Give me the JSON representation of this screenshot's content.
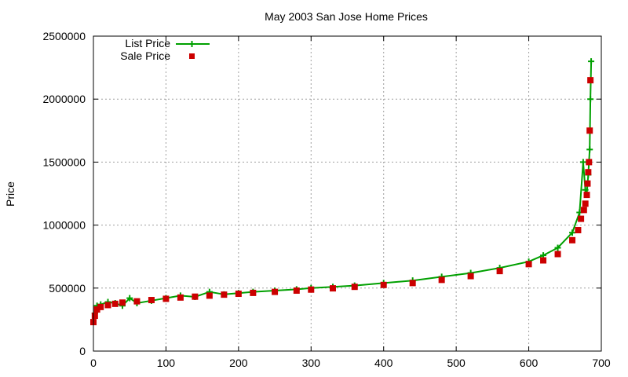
{
  "chart_data": {
    "type": "line",
    "title": "May 2003 San Jose Home Prices",
    "xlabel": "",
    "ylabel": "Price",
    "xlim": [
      0,
      700
    ],
    "ylim": [
      0,
      2500000
    ],
    "x_ticks": [
      0,
      100,
      200,
      300,
      400,
      500,
      600,
      700
    ],
    "y_ticks": [
      0,
      500000,
      1000000,
      1500000,
      2000000,
      2500000
    ],
    "x_tick_labels": [
      "0",
      "100",
      "200",
      "300",
      "400",
      "500",
      "600",
      "700"
    ],
    "y_tick_labels": [
      "0",
      "500000",
      "1000000",
      "1500000",
      "2000000",
      "2500000"
    ],
    "grid": true,
    "legend_position": "top-left",
    "series": [
      {
        "name": "List Price",
        "style": "line+plus-marker",
        "color": "#00a000",
        "x": [
          0,
          2,
          5,
          10,
          20,
          30,
          40,
          50,
          60,
          80,
          100,
          120,
          140,
          160,
          180,
          200,
          220,
          250,
          280,
          300,
          330,
          360,
          400,
          440,
          480,
          520,
          560,
          600,
          620,
          640,
          660,
          670,
          675,
          678,
          680,
          682,
          684,
          685,
          686
        ],
        "values": [
          240000,
          300000,
          360000,
          370000,
          390000,
          380000,
          360000,
          420000,
          380000,
          400000,
          420000,
          440000,
          430000,
          470000,
          450000,
          460000,
          470000,
          480000,
          490000,
          500000,
          510000,
          520000,
          540000,
          560000,
          590000,
          620000,
          660000,
          710000,
          760000,
          820000,
          940000,
          1100000,
          1500000,
          1280000,
          1250000,
          1400000,
          1600000,
          2000000,
          2300000
        ]
      },
      {
        "name": "Sale Price",
        "style": "square-marker",
        "color": "#cc0000",
        "x": [
          0,
          2,
          5,
          10,
          20,
          30,
          40,
          60,
          80,
          100,
          120,
          140,
          160,
          180,
          200,
          220,
          250,
          280,
          300,
          330,
          360,
          400,
          440,
          480,
          520,
          560,
          600,
          620,
          640,
          660,
          668,
          672,
          676,
          678,
          680,
          681,
          682,
          683,
          684,
          685
        ],
        "values": [
          230000,
          280000,
          330000,
          350000,
          365000,
          375000,
          385000,
          395000,
          405000,
          415000,
          425000,
          432000,
          440000,
          448000,
          455000,
          462000,
          470000,
          480000,
          488000,
          498000,
          510000,
          525000,
          540000,
          565000,
          595000,
          635000,
          690000,
          720000,
          770000,
          880000,
          960000,
          1050000,
          1120000,
          1170000,
          1240000,
          1330000,
          1420000,
          1500000,
          1750000,
          2150000
        ]
      }
    ]
  }
}
